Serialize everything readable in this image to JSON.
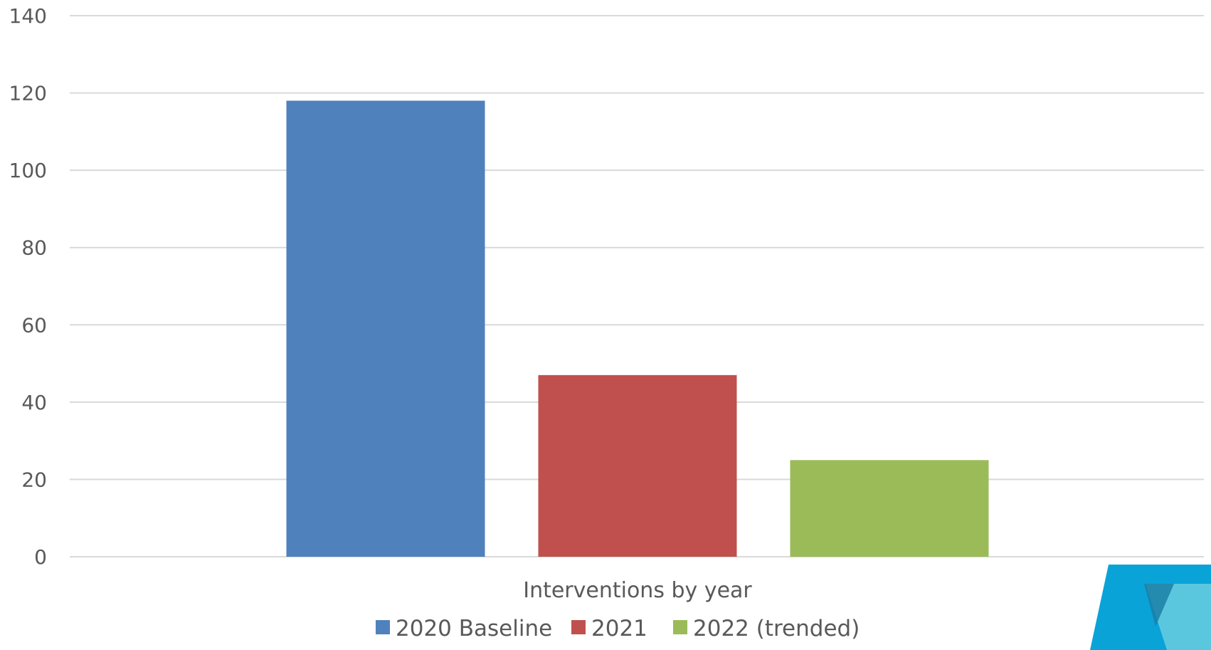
{
  "chart_data": {
    "type": "bar",
    "title": "",
    "xlabel": "",
    "ylabel": "",
    "categories": [
      "Interventions by year"
    ],
    "series": [
      {
        "name": "2020 Baseline",
        "values": [
          118
        ],
        "color": "#4f81bd"
      },
      {
        "name": "2021",
        "values": [
          47
        ],
        "color": "#c0504d"
      },
      {
        "name": "2022 (trended)",
        "values": [
          25
        ],
        "color": "#9bbb59"
      }
    ],
    "ylim": [
      0,
      140
    ],
    "yticks": [
      "0",
      "20",
      "40",
      "60",
      "80",
      "100",
      "120",
      "140"
    ],
    "grid": true,
    "legend": "bottom"
  },
  "decoration": {
    "logo_colors": [
      "#0aa3d8",
      "#5bc7de",
      "#1b7fa6"
    ]
  }
}
